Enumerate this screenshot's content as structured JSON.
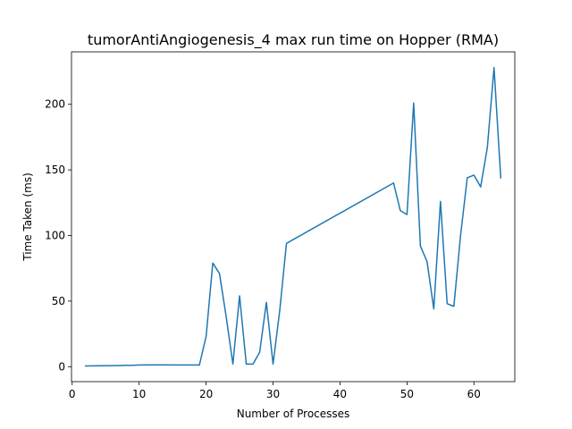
{
  "chart_data": {
    "type": "line",
    "title": "tumorAntiAngiogenesis_4 max run time on Hopper (RMA)",
    "xlabel": "Number of Processes",
    "ylabel": "Time Taken (ms)",
    "xlim": [
      -0.1,
      66.1
    ],
    "ylim": [
      -11.4,
      240.0
    ],
    "xticks": [
      0,
      10,
      20,
      30,
      40,
      50,
      60
    ],
    "yticks": [
      0,
      50,
      100,
      150,
      200
    ],
    "grid": false,
    "series": [
      {
        "color": "#1f77b4",
        "x": [
          2,
          4,
          6,
          8,
          9,
          10,
          12,
          14,
          16,
          17,
          18,
          19,
          20,
          21,
          22,
          23,
          24,
          25,
          26,
          27,
          28,
          29,
          30,
          31,
          32,
          48,
          49,
          50,
          51,
          52,
          53,
          54,
          55,
          56,
          57,
          58,
          59,
          60,
          61,
          62,
          63,
          64
        ],
        "y": [
          0.5,
          0.7,
          0.8,
          1.0,
          1.0,
          1.3,
          1.4,
          1.4,
          1.3,
          1.3,
          1.3,
          1.3,
          23,
          79,
          71,
          38,
          2,
          54,
          2,
          2,
          11,
          49,
          2,
          43,
          94,
          140,
          119,
          116,
          201,
          92,
          80,
          44,
          126,
          48,
          46,
          100,
          144,
          146,
          137,
          167,
          228,
          144
        ]
      }
    ]
  }
}
